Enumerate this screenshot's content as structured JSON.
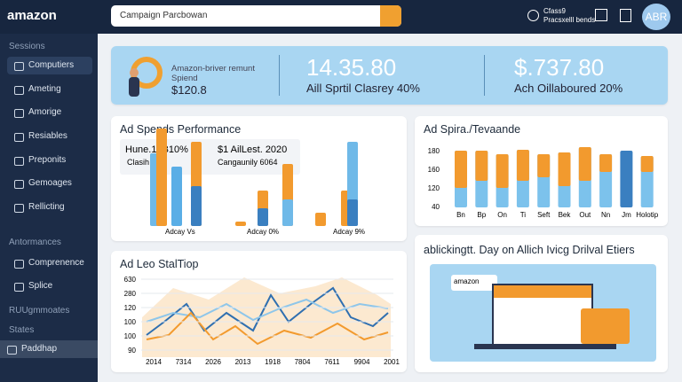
{
  "header": {
    "logo": "amazon",
    "search": "Campaign Parcbowan",
    "account_line1": "Cfass9",
    "account_line2": "Pracsxelll bends",
    "avatar": "ABR"
  },
  "sidebar": {
    "groups": [
      {
        "title": "Sessions",
        "items": [
          "Computiers",
          "Ameting",
          "Amorige",
          "Resiables",
          "Preponits",
          "Gemoages",
          "Rellicting"
        ]
      },
      {
        "title": "Antormances",
        "items": [
          "Comprenence",
          "Splice"
        ]
      },
      {
        "title": "RUUgmmoates",
        "items": []
      },
      {
        "title": "States",
        "items": [
          "Paddhap"
        ]
      }
    ]
  },
  "banner": {
    "line1": "Amazon-briver remunt",
    "line2": "Spiend",
    "amount": "$120.8",
    "kpi1": "14.35.80",
    "kpi1_sub": "Aill Sprtil Clasrey 40%",
    "kpi2": "$.737.80",
    "kpi2_sub": "Ach Oillaboured 20%"
  },
  "cards": [
    {
      "title": "Ad Spends Performance",
      "legend": [
        "Hune.1./B10%",
        "Clasih Lire",
        "$1 AilLest. 2020",
        "Cangaunily 6064"
      ],
      "labels": [
        "Adcay Vs",
        "Adcay 0%",
        "Adcay 9%"
      ]
    },
    {
      "title": "Ad Spira./Tevaande",
      "yticks": [
        "180",
        "160",
        "120",
        "40"
      ],
      "xlabels": [
        "Bn",
        "Bp",
        "On",
        "Ti",
        "Seft",
        "Bek",
        "Out",
        "Nn",
        "Jm",
        "Holotip"
      ]
    },
    {
      "title": "Ad Leo StalTiop",
      "yticks": [
        "630",
        "280",
        "120",
        "100",
        "100",
        "90"
      ],
      "xlabels": [
        "2014",
        "7314",
        "2026",
        "2013",
        "1918",
        "7804",
        "7611",
        "9904",
        "2001"
      ]
    },
    {
      "title": "ablickingtt. Day on Allich Ivicg Drilval Etiers",
      "badge": "amazon"
    }
  ]
}
